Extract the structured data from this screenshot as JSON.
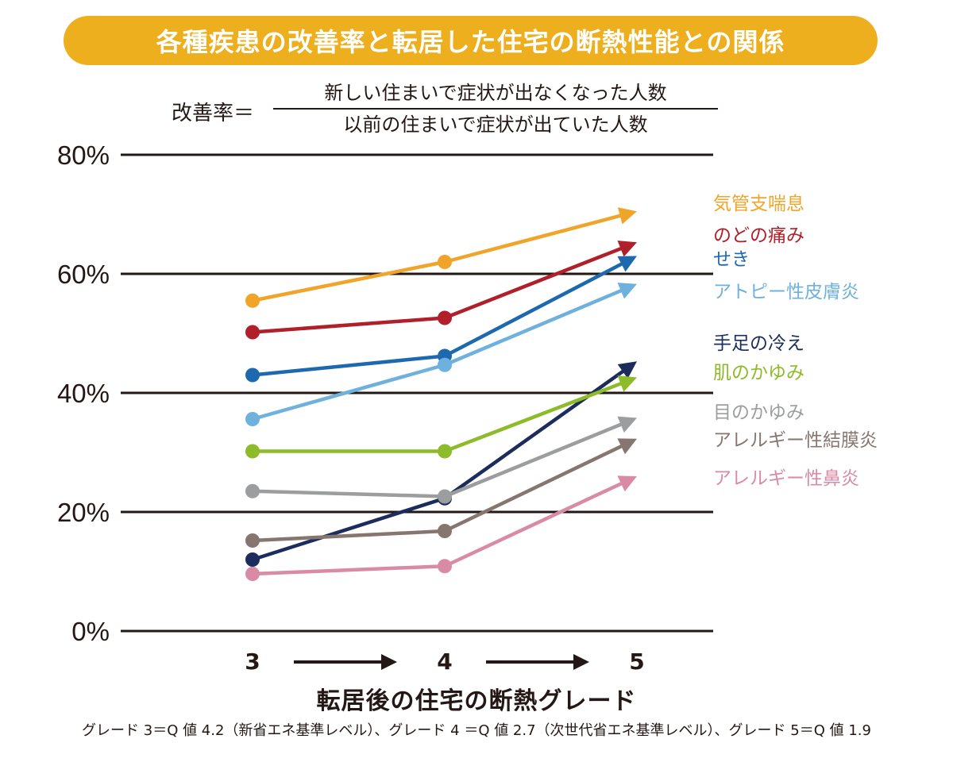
{
  "title": "各種疾患の改善率と転居した住宅の断熱性能との関係",
  "formula": {
    "label": "改善率＝",
    "numerator": "新しい住まいで症状が出なくなった人数",
    "denominator": "以前の住まいで症状が出ていた人数"
  },
  "xlabel": "転居後の住宅の断熱グレード",
  "footnote": "グレード 3＝Q 値 4.2（新省エネ基準レベル）、グレード 4 ＝Q 値 2.7（次世代省エネ基準レベル）、グレード 5＝Q 値 1.9",
  "chart_data": {
    "type": "line",
    "categories": [
      "3",
      "4",
      "5"
    ],
    "ylim": [
      0,
      80
    ],
    "yticks": [
      "0%",
      "20%",
      "40%",
      "60%",
      "80%"
    ],
    "grid": true,
    "legend_placement": "right",
    "series": [
      {
        "name": "気管支喘息",
        "color": "#F0A52A",
        "values": [
          55.5,
          62,
          70.5
        ]
      },
      {
        "name": "のどの痛み",
        "color": "#B11F2A",
        "values": [
          50.2,
          52.6,
          65.3
        ]
      },
      {
        "name": "せき",
        "color": "#1C69B0",
        "values": [
          43,
          46.2,
          63
        ]
      },
      {
        "name": "アトピー性皮膚炎",
        "color": "#6FB1DD",
        "values": [
          35.6,
          44.7,
          58.3
        ]
      },
      {
        "name": "手足の冷え",
        "color": "#1C2C5C",
        "values": [
          12,
          22.3,
          45.3
        ]
      },
      {
        "name": "肌のかゆみ",
        "color": "#8DBB29",
        "values": [
          30.2,
          30.2,
          42.6
        ]
      },
      {
        "name": "目のかゆみ",
        "color": "#9C9D9E",
        "values": [
          23.5,
          22.6,
          35.8
        ]
      },
      {
        "name": "アレルギー性結膜炎",
        "color": "#877670",
        "values": [
          15.2,
          16.8,
          32.3
        ]
      },
      {
        "name": "アレルギー性鼻炎",
        "color": "#D98BA5",
        "values": [
          9.6,
          10.9,
          26
        ]
      }
    ]
  }
}
